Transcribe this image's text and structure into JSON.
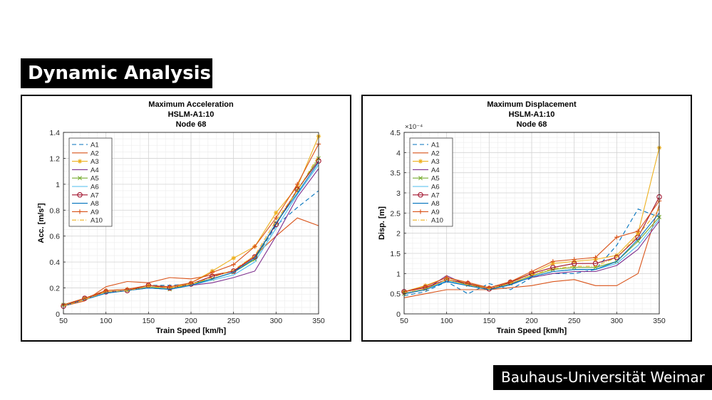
{
  "slide": {
    "title": "Dynamic Analysis",
    "institution": "Bauhaus-Universität Weimar"
  },
  "chart_data": [
    {
      "type": "line",
      "title": "Maximum Acceleration",
      "subtitle": "HSLM-A1:10",
      "subtitle2": "Node 68",
      "xlabel": "Train Speed [km/h]",
      "ylabel": "Acc. [m/s²]",
      "xlim": [
        50,
        350
      ],
      "ylim": [
        0,
        1.4
      ],
      "xticks": [
        50,
        100,
        150,
        200,
        250,
        300,
        350
      ],
      "yticks": [
        0,
        0.2,
        0.4,
        0.6,
        0.8,
        1,
        1.2,
        1.4
      ],
      "ytick_labels": [
        "0",
        "0.2",
        "0.4",
        "0.6",
        "0.8",
        "1",
        "1.2",
        "1.4"
      ],
      "grid": true,
      "legend_position": "top-left",
      "x": [
        50,
        75,
        100,
        125,
        150,
        175,
        200,
        225,
        250,
        275,
        300,
        325,
        350
      ],
      "series": [
        {
          "name": "A1",
          "color": "#0072BD",
          "dash": "6,4",
          "marker": "none",
          "values": [
            0.06,
            0.12,
            0.17,
            0.18,
            0.22,
            0.22,
            0.23,
            0.29,
            0.33,
            0.42,
            0.68,
            0.82,
            0.95
          ]
        },
        {
          "name": "A2",
          "color": "#D95319",
          "dash": "",
          "marker": "none",
          "values": [
            0.06,
            0.1,
            0.21,
            0.25,
            0.24,
            0.28,
            0.27,
            0.3,
            0.33,
            0.45,
            0.6,
            0.74,
            0.68
          ]
        },
        {
          "name": "A3",
          "color": "#EDB120",
          "dash": "",
          "marker": "star",
          "values": [
            0.07,
            0.12,
            0.18,
            0.19,
            0.22,
            0.2,
            0.24,
            0.33,
            0.43,
            0.52,
            0.78,
            0.98,
            1.37
          ]
        },
        {
          "name": "A4",
          "color": "#7E2F8E",
          "dash": "",
          "marker": "none",
          "values": [
            0.06,
            0.11,
            0.16,
            0.18,
            0.2,
            0.19,
            0.22,
            0.24,
            0.28,
            0.33,
            0.6,
            0.9,
            1.12
          ]
        },
        {
          "name": "A5",
          "color": "#77AC30",
          "dash": "",
          "marker": "x",
          "values": [
            0.07,
            0.12,
            0.17,
            0.18,
            0.21,
            0.19,
            0.23,
            0.27,
            0.32,
            0.42,
            0.7,
            0.95,
            1.2
          ]
        },
        {
          "name": "A6",
          "color": "#4DBEEE",
          "dash": "",
          "marker": "none",
          "values": [
            0.06,
            0.11,
            0.16,
            0.18,
            0.2,
            0.19,
            0.22,
            0.26,
            0.3,
            0.4,
            0.66,
            0.92,
            1.15
          ]
        },
        {
          "name": "A7",
          "color": "#A2142F",
          "dash": "",
          "marker": "circle",
          "values": [
            0.06,
            0.12,
            0.17,
            0.18,
            0.22,
            0.2,
            0.23,
            0.29,
            0.33,
            0.44,
            0.69,
            0.96,
            1.18
          ]
        },
        {
          "name": "A8",
          "color": "#0072BD",
          "dash": "",
          "marker": "none",
          "values": [
            0.06,
            0.11,
            0.16,
            0.18,
            0.2,
            0.19,
            0.22,
            0.27,
            0.32,
            0.43,
            0.7,
            0.93,
            1.17
          ]
        },
        {
          "name": "A9",
          "color": "#D95319",
          "dash": "",
          "marker": "plus",
          "values": [
            0.07,
            0.12,
            0.18,
            0.19,
            0.22,
            0.21,
            0.24,
            0.32,
            0.38,
            0.52,
            0.74,
            1.0,
            1.31
          ]
        },
        {
          "name": "A10",
          "color": "#EDB120",
          "dash": "6,2,1,2",
          "marker": "none",
          "values": [
            0.06,
            0.11,
            0.17,
            0.18,
            0.21,
            0.2,
            0.23,
            0.28,
            0.34,
            0.45,
            0.72,
            0.95,
            1.22
          ]
        }
      ]
    },
    {
      "type": "line",
      "title": "Maximum Displacement",
      "subtitle": "HSLM-A1:10",
      "subtitle2": "Node 68",
      "xlabel": "Train Speed [km/h]",
      "ylabel": "Disp. [m]",
      "exponent_label": "×10⁻⁴",
      "xlim": [
        50,
        350
      ],
      "ylim": [
        0,
        4.5
      ],
      "xticks": [
        50,
        100,
        150,
        200,
        250,
        300,
        350
      ],
      "yticks": [
        0,
        0.5,
        1,
        1.5,
        2,
        2.5,
        3,
        3.5,
        4,
        4.5
      ],
      "ytick_labels": [
        "0",
        "0.5",
        "1",
        "1.5",
        "2",
        "2.5",
        "3",
        "3.5",
        "4",
        "4.5"
      ],
      "grid": true,
      "legend_position": "top-left",
      "x": [
        50,
        75,
        100,
        125,
        150,
        175,
        200,
        225,
        250,
        275,
        300,
        325,
        350
      ],
      "series": [
        {
          "name": "A1",
          "color": "#0072BD",
          "dash": "6,4",
          "marker": "none",
          "values": [
            0.45,
            0.55,
            0.8,
            0.5,
            0.75,
            0.6,
            0.9,
            1.0,
            1.0,
            1.1,
            1.7,
            2.6,
            2.4
          ]
        },
        {
          "name": "A2",
          "color": "#D95319",
          "dash": "",
          "marker": "none",
          "values": [
            0.4,
            0.5,
            0.6,
            0.6,
            0.6,
            0.65,
            0.7,
            0.8,
            0.85,
            0.7,
            0.7,
            1.0,
            2.7
          ]
        },
        {
          "name": "A3",
          "color": "#EDB120",
          "dash": "",
          "marker": "star",
          "values": [
            0.55,
            0.7,
            0.9,
            0.75,
            0.65,
            0.8,
            1.0,
            1.25,
            1.3,
            1.35,
            1.45,
            2.0,
            4.12
          ]
        },
        {
          "name": "A4",
          "color": "#7E2F8E",
          "dash": "",
          "marker": "none",
          "values": [
            0.5,
            0.6,
            0.95,
            0.7,
            0.6,
            0.75,
            0.9,
            1.0,
            1.05,
            1.05,
            1.2,
            1.6,
            2.3
          ]
        },
        {
          "name": "A5",
          "color": "#77AC30",
          "dash": "",
          "marker": "x",
          "values": [
            0.5,
            0.62,
            0.85,
            0.72,
            0.62,
            0.75,
            0.95,
            1.1,
            1.15,
            1.15,
            1.3,
            1.8,
            2.4
          ]
        },
        {
          "name": "A6",
          "color": "#4DBEEE",
          "dash": "",
          "marker": "none",
          "values": [
            0.5,
            0.6,
            0.82,
            0.7,
            0.6,
            0.72,
            0.92,
            1.05,
            1.1,
            1.1,
            1.25,
            1.7,
            2.35
          ]
        },
        {
          "name": "A7",
          "color": "#A2142F",
          "dash": "",
          "marker": "circle",
          "values": [
            0.55,
            0.65,
            0.85,
            0.75,
            0.62,
            0.78,
            1.0,
            1.15,
            1.25,
            1.25,
            1.4,
            1.9,
            2.9
          ]
        },
        {
          "name": "A8",
          "color": "#0072BD",
          "dash": "",
          "marker": "none",
          "values": [
            0.5,
            0.6,
            0.8,
            0.7,
            0.6,
            0.72,
            0.92,
            1.05,
            1.1,
            1.1,
            1.3,
            1.85,
            2.5
          ]
        },
        {
          "name": "A9",
          "color": "#D95319",
          "dash": "",
          "marker": "plus",
          "values": [
            0.55,
            0.68,
            0.9,
            0.78,
            0.65,
            0.8,
            1.05,
            1.3,
            1.35,
            1.4,
            1.9,
            2.05,
            2.8
          ]
        },
        {
          "name": "A10",
          "color": "#EDB120",
          "dash": "6,2,1,2",
          "marker": "none",
          "values": [
            0.52,
            0.62,
            0.85,
            0.72,
            0.62,
            0.76,
            0.96,
            1.12,
            1.18,
            1.18,
            1.4,
            1.95,
            2.6
          ]
        }
      ]
    }
  ]
}
